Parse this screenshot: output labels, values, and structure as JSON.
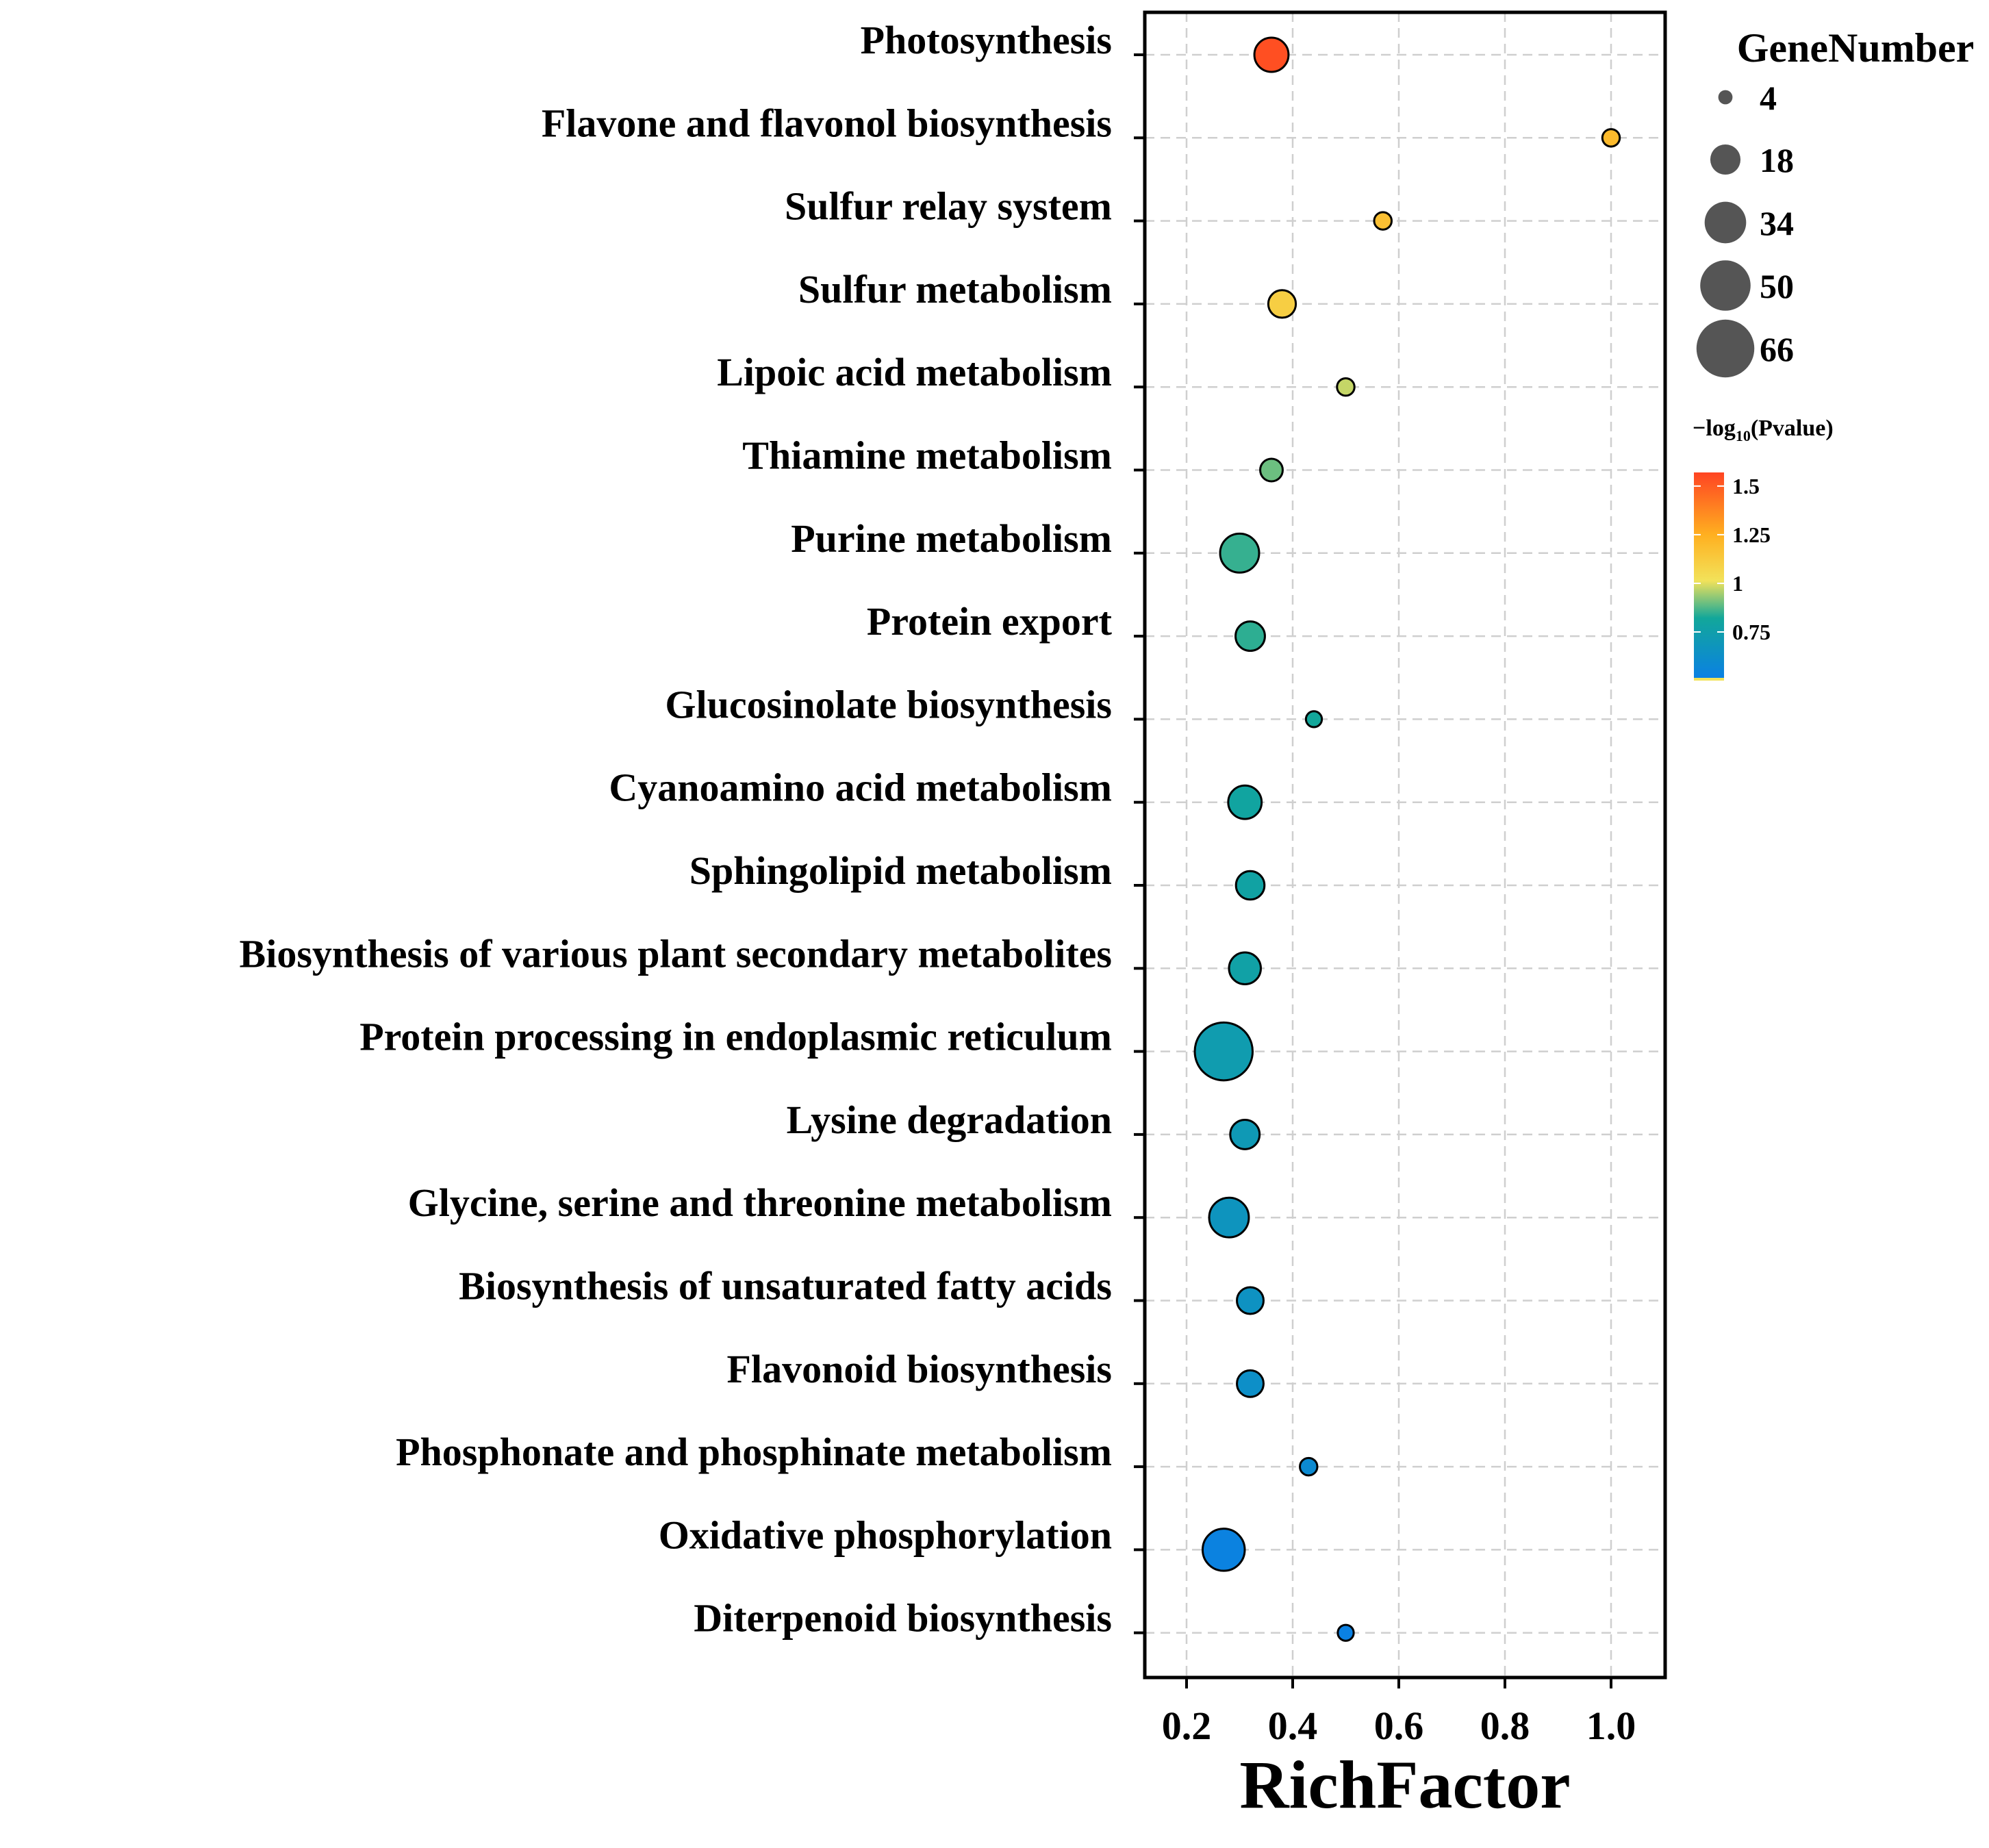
{
  "chart_data": {
    "type": "scatter",
    "subtype": "bubble",
    "xlabel": "RichFactor",
    "xlim": [
      0.11,
      1.1
    ],
    "xticks": [
      "0.2",
      "0.4",
      "0.6",
      "0.8",
      "1.0"
    ],
    "xtick_values": [
      0.2,
      0.4,
      0.6,
      0.8,
      1.0
    ],
    "grid": true,
    "categories": [
      "Photosynthesis",
      "Flavone and flavonol biosynthesis",
      "Sulfur relay system",
      "Sulfur metabolism",
      "Lipoic acid metabolism",
      "Thiamine metabolism",
      "Purine metabolism",
      "Protein export",
      "Glucosinolate biosynthesis",
      "Cyanoamino acid metabolism",
      "Sphingolipid metabolism",
      "Biosynthesis of various plant secondary metabolites",
      "Protein processing in endoplasmic reticulum",
      "Lysine degradation",
      "Glycine, serine and threonine metabolism",
      "Biosynthesis of unsaturated fatty acids",
      "Flavonoid biosynthesis",
      "Phosphonate and phosphinate metabolism",
      "Oxidative phosphorylation",
      "Diterpenoid biosynthesis"
    ],
    "rich_factor": [
      0.36,
      1.0,
      0.57,
      0.38,
      0.5,
      0.36,
      0.3,
      0.32,
      0.44,
      0.31,
      0.32,
      0.31,
      0.27,
      0.31,
      0.28,
      0.32,
      0.32,
      0.43,
      0.27,
      0.5
    ],
    "gene_number": [
      23,
      6,
      6,
      15,
      6,
      10,
      30,
      17,
      5,
      22,
      16,
      20,
      66,
      17,
      31,
      14,
      14,
      6,
      35,
      5
    ],
    "neg_log10_pvalue": [
      1.52,
      1.2,
      1.17,
      1.1,
      0.95,
      0.85,
      0.79,
      0.78,
      0.75,
      0.73,
      0.72,
      0.71,
      0.68,
      0.66,
      0.63,
      0.62,
      0.6,
      0.57,
      0.52,
      0.51
    ],
    "size_legend": {
      "title": "GeneNumber",
      "values": [
        4,
        18,
        34,
        50,
        66
      ],
      "labels": [
        "4",
        "18",
        "34",
        "50",
        "66"
      ]
    },
    "color_legend": {
      "title_prefix": "−log",
      "title_sub": "10",
      "title_suffix": "(Pvalue)",
      "range": [
        0.5,
        1.57
      ],
      "tick_values": [
        1.5,
        1.25,
        1.0,
        0.75
      ],
      "tick_labels": [
        "1.5",
        "1.25",
        "1",
        "0.75"
      ]
    },
    "colors": {
      "high": "#ff4422",
      "orange": "#ff8c1a",
      "yellow": "#f6cf3d",
      "green": "#8fc17a",
      "teal": "#12a79a",
      "low": "#0a7fe6",
      "outline": "#000000"
    }
  }
}
